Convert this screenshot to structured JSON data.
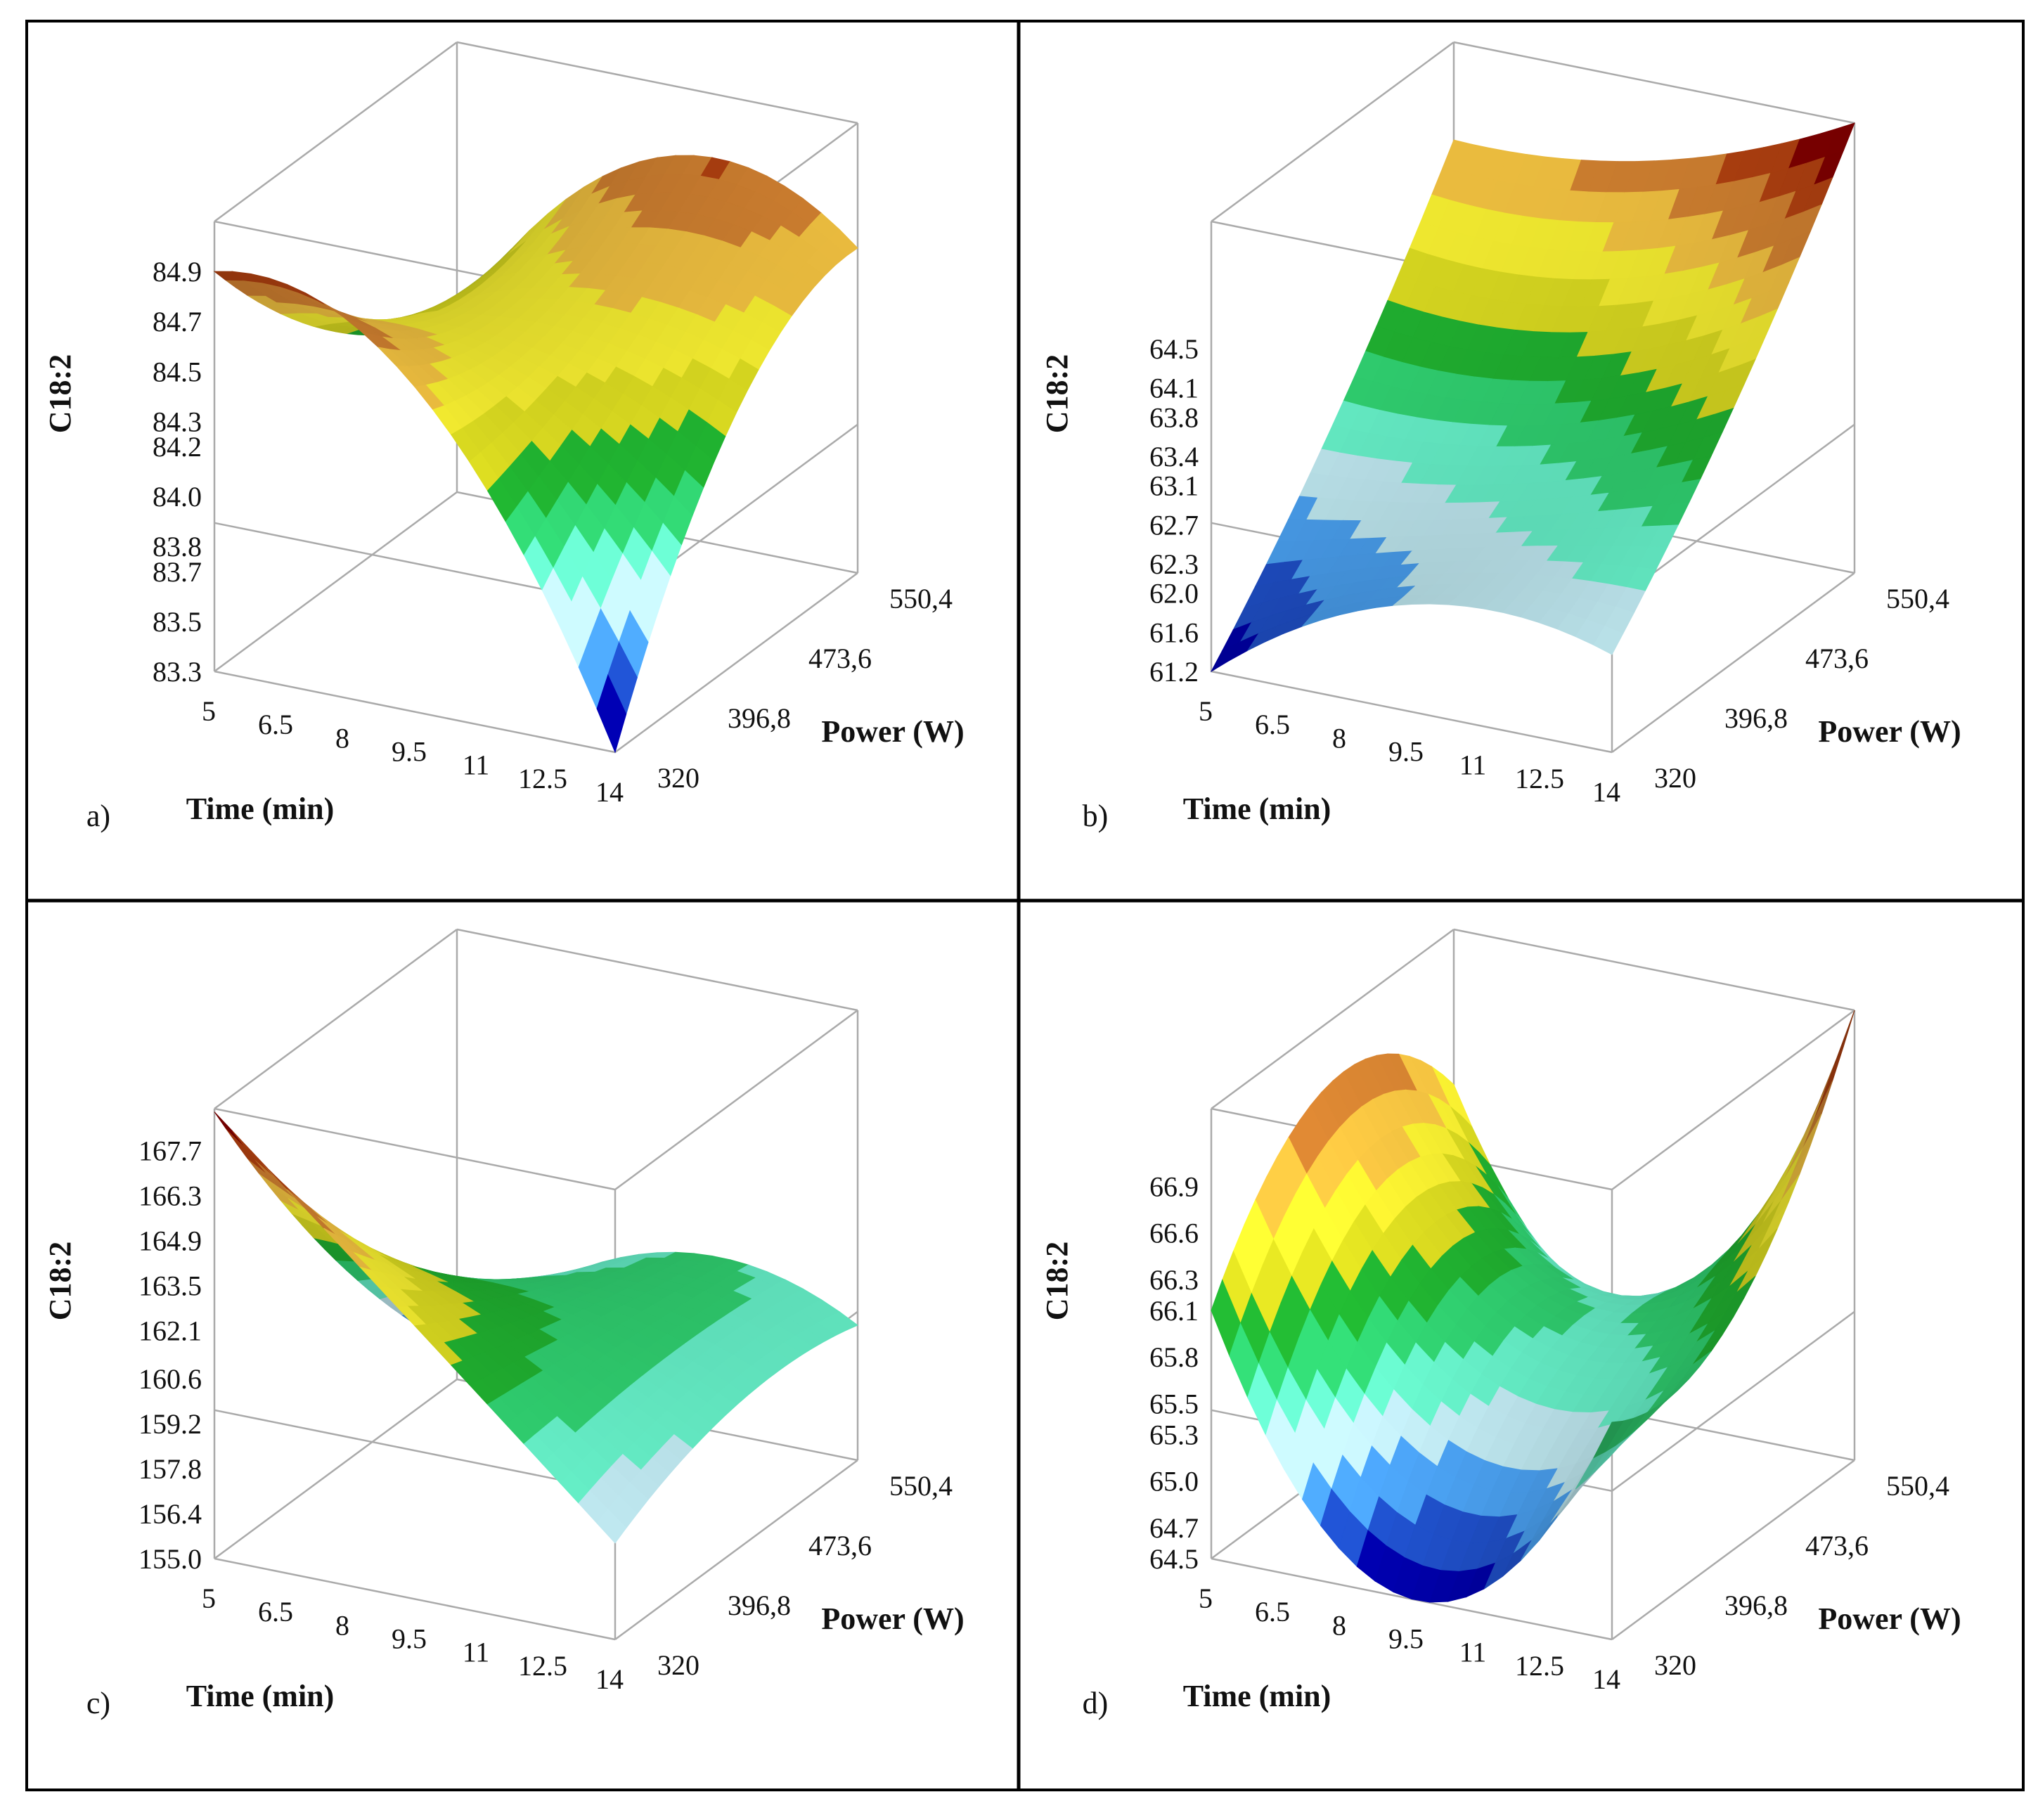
{
  "figure": {
    "colormap": [
      "#0000a8",
      "#1f4fc8",
      "#4aa0f0",
      "#bfe8f0",
      "#66f0c8",
      "#30d070",
      "#20b030",
      "#d8d820",
      "#f4ec30",
      "#f0c040",
      "#d08030",
      "#b04010",
      "#800000"
    ]
  },
  "chart_data": [
    {
      "type": "surface3d",
      "panel_label": "a)",
      "xlabel": "Time (min)",
      "ylabel": "Power (W)",
      "zlabel": "C18:2",
      "x_ticks": [
        "5",
        "6.5",
        "8",
        "9.5",
        "11",
        "12.5",
        "14"
      ],
      "y_ticks": [
        "320",
        "396,8",
        "473,6",
        "550,4"
      ],
      "z_ticks": [
        "83.3",
        "83.5",
        "83.7",
        "83.8",
        "84.0",
        "84.2",
        "84.3",
        "84.5",
        "84.7",
        "84.9"
      ],
      "xlim": [
        5,
        14
      ],
      "ylim": [
        320,
        550.4
      ],
      "zlim": [
        83.3,
        85.1
      ],
      "x": [
        5,
        9.5,
        14
      ],
      "y": [
        320,
        435.2,
        550.4
      ],
      "z": [
        [
          84.9,
          84.3,
          84.0
        ],
        [
          84.6,
          84.5,
          84.8
        ],
        [
          83.3,
          84.3,
          84.6
        ]
      ]
    },
    {
      "type": "surface3d",
      "panel_label": "b)",
      "xlabel": "Time (min)",
      "ylabel": "Power (W)",
      "zlabel": "C18:2",
      "x_ticks": [
        "5",
        "6.5",
        "8",
        "9.5",
        "11",
        "12.5",
        "14"
      ],
      "y_ticks": [
        "320",
        "396,8",
        "473,6",
        "550,4"
      ],
      "z_ticks": [
        "61.2",
        "61.6",
        "62.0",
        "62.3",
        "62.7",
        "63.1",
        "63.4",
        "63.8",
        "64.1",
        "64.5"
      ],
      "xlim": [
        5,
        14
      ],
      "ylim": [
        320,
        550.4
      ],
      "zlim": [
        61.2,
        65.8
      ],
      "x": [
        5,
        9.5,
        14
      ],
      "y": [
        320,
        435.2,
        550.4
      ],
      "z": [
        [
          61.2,
          62.8,
          64.8
        ],
        [
          62.3,
          63.0,
          65.0
        ],
        [
          62.2,
          63.8,
          65.8
        ]
      ]
    },
    {
      "type": "surface3d",
      "panel_label": "c)",
      "xlabel": "Time (min)",
      "ylabel": "Power (W)",
      "zlabel": "C18:2",
      "x_ticks": [
        "5",
        "6.5",
        "8",
        "9.5",
        "11",
        "12.5",
        "14"
      ],
      "y_ticks": [
        "320",
        "396,8",
        "473,6",
        "550,4"
      ],
      "z_ticks": [
        "155.0",
        "156.4",
        "157.8",
        "159.2",
        "160.6",
        "162.1",
        "163.5",
        "164.9",
        "166.3",
        "167.7"
      ],
      "xlim": [
        5,
        14
      ],
      "ylim": [
        320,
        550.4
      ],
      "zlim": [
        155.0,
        169.0
      ],
      "x": [
        5,
        9.5,
        14
      ],
      "y": [
        320,
        435.2,
        550.4
      ],
      "z": [
        [
          168.9,
          161.5,
          156.0
        ],
        [
          163.5,
          161.5,
          160.2
        ],
        [
          158.0,
          159.5,
          159.2
        ]
      ]
    },
    {
      "type": "surface3d",
      "panel_label": "d)",
      "xlabel": "Time (min)",
      "ylabel": "Power (W)",
      "zlabel": "C18:2",
      "x_ticks": [
        "5",
        "6.5",
        "8",
        "9.5",
        "11",
        "12.5",
        "14"
      ],
      "y_ticks": [
        "320",
        "396,8",
        "473,6",
        "550,4"
      ],
      "z_ticks": [
        "64.5",
        "64.7",
        "65.0",
        "65.3",
        "65.5",
        "65.8",
        "66.1",
        "66.3",
        "66.6",
        "66.9"
      ],
      "xlim": [
        5,
        14
      ],
      "ylim": [
        320,
        550.4
      ],
      "zlim": [
        64.5,
        67.4
      ],
      "x": [
        5,
        9.5,
        14
      ],
      "y": [
        320,
        435.2,
        550.4
      ],
      "z": [
        [
          66.1,
          67.0,
          66.4
        ],
        [
          64.5,
          65.6,
          65.2
        ],
        [
          65.9,
          66.0,
          67.4
        ]
      ]
    }
  ]
}
